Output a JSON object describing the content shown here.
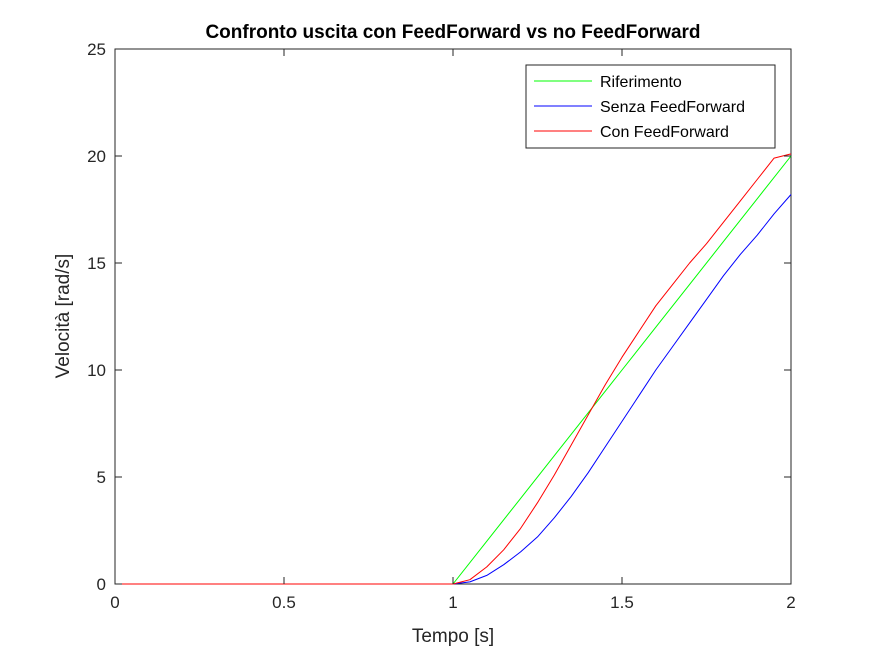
{
  "chart_data": {
    "type": "line",
    "title": "Confronto uscita con FeedForward vs no FeedForward",
    "xlabel": "Tempo [s]",
    "ylabel": "Velocità [rad/s]",
    "xlim": [
      0,
      2
    ],
    "ylim": [
      0,
      25
    ],
    "xticks": [
      0,
      0.5,
      1,
      1.5,
      2
    ],
    "xtick_labels": [
      "0",
      "0.5",
      "1",
      "1.5",
      "2"
    ],
    "yticks": [
      0,
      5,
      10,
      15,
      20,
      25
    ],
    "ytick_labels": [
      "0",
      "5",
      "10",
      "15",
      "20",
      "25"
    ],
    "grid": false,
    "legend_position": "top-right",
    "series": [
      {
        "name": "Riferimento",
        "color": "#00ff00",
        "x": [
          0,
          1,
          1.1,
          1.2,
          1.3,
          1.4,
          1.5,
          1.6,
          1.7,
          1.8,
          1.9,
          2
        ],
        "y": [
          0,
          0,
          2,
          4,
          6,
          8,
          10,
          12,
          14,
          16,
          18,
          20
        ]
      },
      {
        "name": "Senza FeedForward",
        "color": "#0000ff",
        "x": [
          0,
          1,
          1.05,
          1.1,
          1.15,
          1.2,
          1.25,
          1.3,
          1.35,
          1.4,
          1.45,
          1.5,
          1.55,
          1.6,
          1.65,
          1.7,
          1.75,
          1.8,
          1.85,
          1.9,
          1.95,
          2
        ],
        "y": [
          0,
          0,
          0.1,
          0.4,
          0.9,
          1.5,
          2.2,
          3.1,
          4.1,
          5.2,
          6.4,
          7.6,
          8.8,
          10.0,
          11.1,
          12.2,
          13.3,
          14.4,
          15.4,
          16.3,
          17.3,
          18.2
        ]
      },
      {
        "name": "Con FeedForward",
        "color": "#ff0000",
        "x": [
          0,
          1,
          1.05,
          1.1,
          1.15,
          1.2,
          1.25,
          1.3,
          1.35,
          1.4,
          1.45,
          1.5,
          1.55,
          1.6,
          1.65,
          1.7,
          1.75,
          1.8,
          1.85,
          1.9,
          1.95,
          2
        ],
        "y": [
          0,
          0,
          0.2,
          0.8,
          1.6,
          2.6,
          3.8,
          5.1,
          6.5,
          7.9,
          9.3,
          10.6,
          11.8,
          13.0,
          14.0,
          15.0,
          15.9,
          16.9,
          17.9,
          18.9,
          19.9,
          20.1
        ]
      }
    ]
  }
}
